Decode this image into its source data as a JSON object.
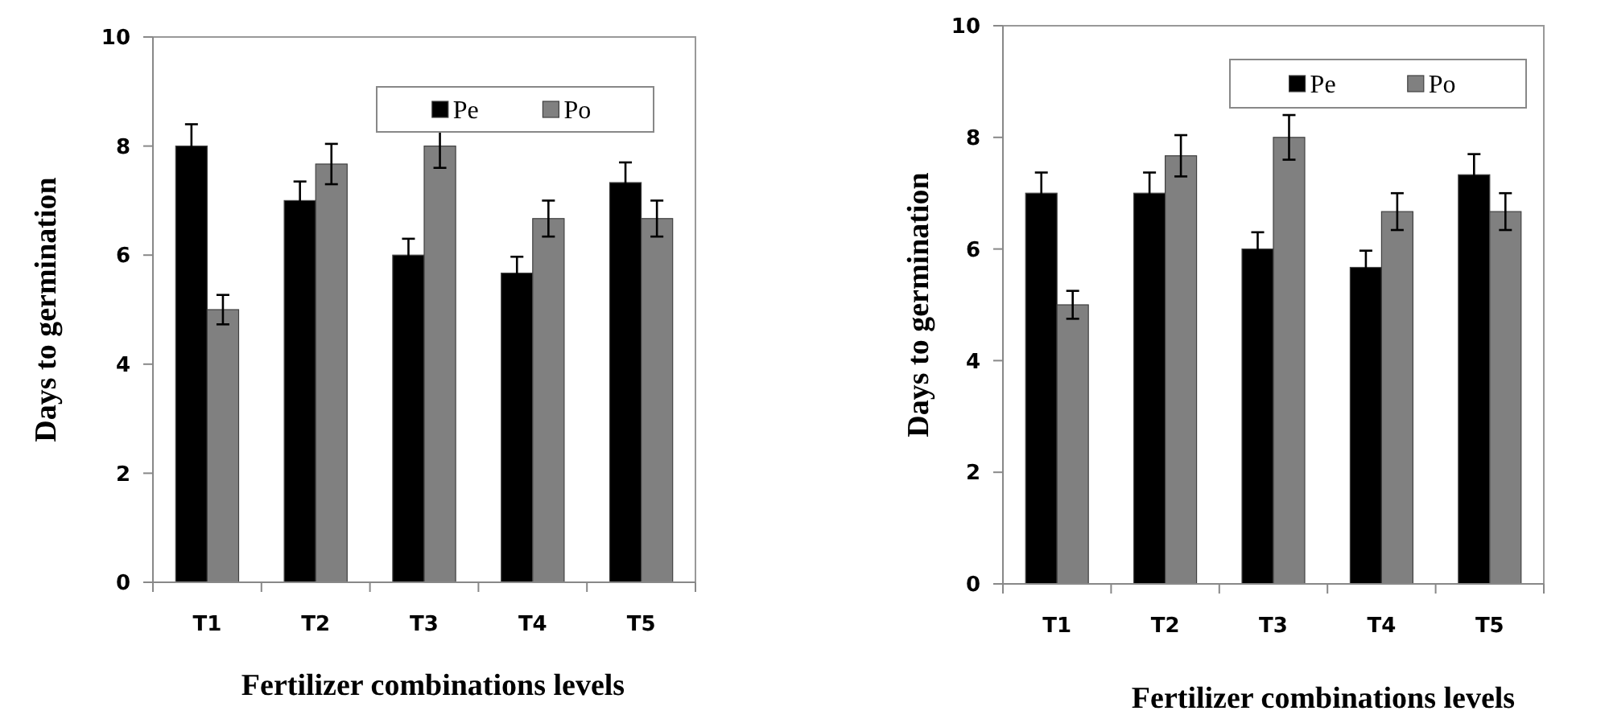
{
  "chart_data": [
    {
      "type": "bar",
      "xlabel": "Fertilizer combinations levels",
      "ylabel": "Days to germination",
      "categories": [
        "T1",
        "T2",
        "T3",
        "T4",
        "T5"
      ],
      "ylim": [
        0,
        10
      ],
      "yticks": [
        0,
        2,
        4,
        6,
        8,
        10
      ],
      "legend": "top right",
      "grid": false,
      "series": [
        {
          "name": "Pe",
          "color": "#000000",
          "values": [
            8,
            7,
            6,
            5.67,
            7.33
          ],
          "errors": [
            0.4,
            0.35,
            0.3,
            0.3,
            0.37
          ]
        },
        {
          "name": "Po",
          "color": "#808080",
          "values": [
            5,
            7.67,
            8,
            6.67,
            6.67
          ],
          "errors": [
            0.27,
            0.37,
            0.4,
            0.33,
            0.33
          ]
        }
      ]
    },
    {
      "type": "bar",
      "xlabel": "Fertilizer combinations levels",
      "ylabel": "Days to germination",
      "categories": [
        "T1",
        "T2",
        "T3",
        "T4",
        "T5"
      ],
      "ylim": [
        0,
        10
      ],
      "yticks": [
        0,
        2,
        4,
        6,
        8,
        10
      ],
      "legend": "top right",
      "grid": false,
      "series": [
        {
          "name": "Pe",
          "color": "#000000",
          "values": [
            7,
            7,
            6,
            5.67,
            7.33
          ],
          "errors": [
            0.37,
            0.37,
            0.3,
            0.3,
            0.37
          ]
        },
        {
          "name": "Po",
          "color": "#808080",
          "values": [
            5,
            7.67,
            8,
            6.67,
            6.67
          ],
          "errors": [
            0.25,
            0.37,
            0.4,
            0.33,
            0.33
          ]
        }
      ]
    }
  ]
}
